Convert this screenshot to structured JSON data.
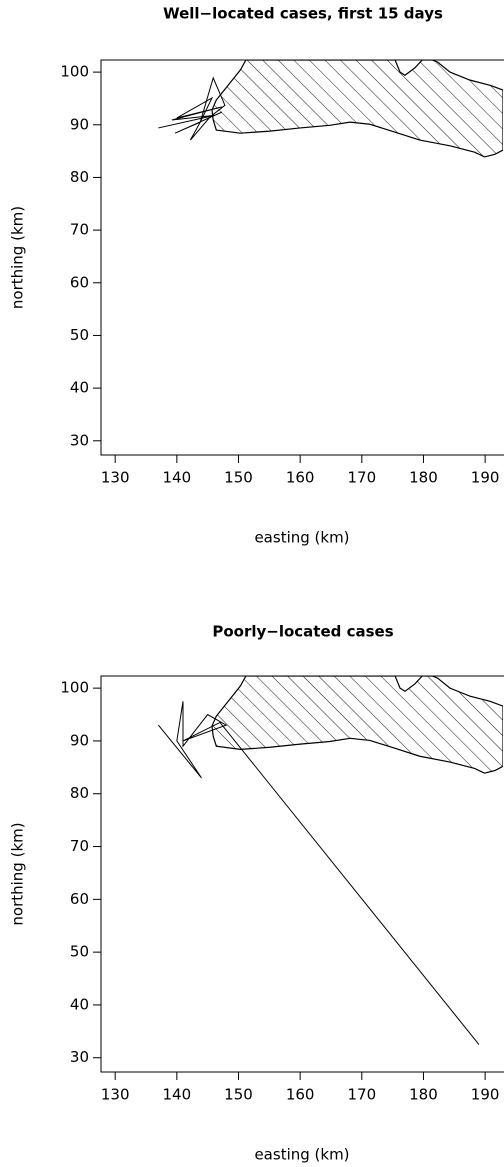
{
  "chart_data": [
    {
      "type": "line",
      "title": "Well−located cases,  first 15 days",
      "x_label": "easting (km)",
      "y_label": "northing (km)",
      "xlim": [
        127.7,
        192.9
      ],
      "ylim": [
        27.3,
        102.3
      ],
      "xticks": [
        130,
        140,
        150,
        160,
        170,
        180,
        190
      ],
      "yticks": [
        30,
        40,
        50,
        60,
        70,
        80,
        90,
        100
      ],
      "land": {
        "color": "#000000",
        "hatch": true,
        "x": [
          151.2,
          150.3,
          149.0,
          147.7,
          146.4,
          145.7,
          145.9,
          146.4,
          150.3,
          155.1,
          160.0,
          164.8,
          168.1,
          171.3,
          175.4,
          179.4,
          184.3,
          188.3,
          189.9,
          191.6,
          192.9,
          192.9,
          190.8,
          187.5,
          184.3,
          182.3,
          181.4,
          179.8,
          178.6,
          177.0,
          176.2,
          175.4
        ],
        "y": [
          102.3,
          100.4,
          98.5,
          96.6,
          94.7,
          92.8,
          90.9,
          89.0,
          88.4,
          88.8,
          89.4,
          89.9,
          90.5,
          90.1,
          88.6,
          87.1,
          86.0,
          84.8,
          83.9,
          84.4,
          85.2,
          96.6,
          97.5,
          98.5,
          100.0,
          101.9,
          102.3,
          102.3,
          100.8,
          99.4,
          100.0,
          102.3
        ]
      },
      "series": [
        {
          "color": "#000000",
          "x": [
            137.0,
            146.2,
            139.2,
            147.3,
            140.0,
            145.7,
            143.8,
            142.2,
            145.4,
            147.8,
            145.9,
            143.8,
            139.7,
            147.3
          ],
          "values": [
            89.4,
            91.8,
            90.9,
            93.4,
            91.3,
            95.1,
            90.5,
            87.1,
            91.5,
            93.7,
            98.9,
            90.5,
            88.4,
            92.4
          ]
        }
      ]
    },
    {
      "type": "line",
      "title": "Poorly−located cases",
      "x_label": "easting (km)",
      "y_label": "northing (km)",
      "xlim": [
        127.7,
        192.9
      ],
      "ylim": [
        27.3,
        102.3
      ],
      "xticks": [
        130,
        140,
        150,
        160,
        170,
        180,
        190
      ],
      "yticks": [
        30,
        40,
        50,
        60,
        70,
        80,
        90,
        100
      ],
      "land": {
        "color": "#000000",
        "hatch": true,
        "x": [
          151.2,
          150.3,
          149.0,
          147.7,
          146.4,
          145.7,
          145.9,
          146.4,
          150.3,
          155.1,
          160.0,
          164.8,
          168.1,
          171.3,
          175.4,
          179.4,
          184.3,
          188.3,
          189.9,
          191.6,
          192.9,
          192.9,
          190.8,
          187.5,
          184.3,
          182.3,
          181.4,
          179.8,
          178.6,
          177.0,
          176.2,
          175.4
        ],
        "y": [
          102.3,
          100.4,
          98.5,
          96.6,
          94.7,
          92.8,
          90.9,
          89.0,
          88.4,
          88.8,
          89.4,
          89.9,
          90.5,
          90.1,
          88.6,
          87.1,
          86.0,
          84.8,
          83.9,
          84.4,
          85.2,
          96.6,
          97.5,
          98.5,
          100.0,
          101.9,
          102.3,
          102.3,
          100.8,
          99.4,
          100.0,
          102.3
        ]
      },
      "series": [
        {
          "color": "#000000",
          "x": [
            137.0,
            144.0,
            140.0,
            141.0,
            141.0,
            145.0,
            148.0,
            141.0,
            147.0,
            189.0
          ],
          "values": [
            93.0,
            83.0,
            90.0,
            97.5,
            89.0,
            95.0,
            93.0,
            90.0,
            93.5,
            32.5
          ]
        }
      ]
    }
  ]
}
